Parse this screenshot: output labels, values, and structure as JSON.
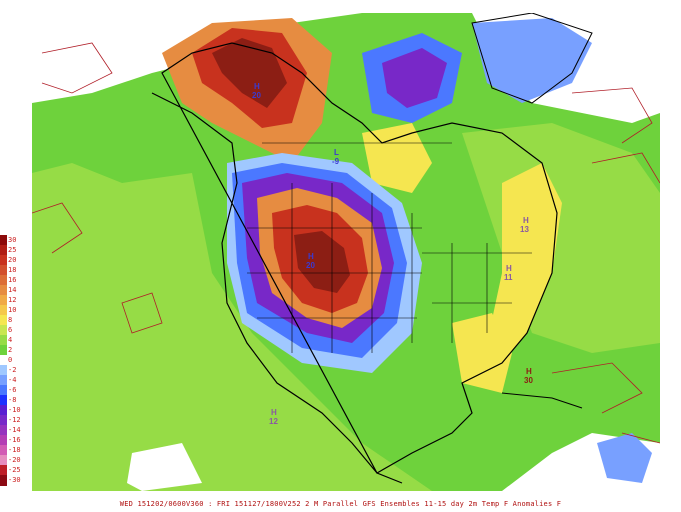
{
  "footer": {
    "text": "WED 151202/0600V360 : FRI 151127/1800V252  2 M Parallel GFS Ensembles 11-15 day 2m Temp F Anomalies F"
  },
  "legend": {
    "entries": [
      {
        "label": "30",
        "color": "#8c0a0a"
      },
      {
        "label": "25",
        "color": "#b01e14"
      },
      {
        "label": "20",
        "color": "#c8321e"
      },
      {
        "label": "18",
        "color": "#d2502d"
      },
      {
        "label": "16",
        "color": "#dc6e37"
      },
      {
        "label": "14",
        "color": "#e68c41"
      },
      {
        "label": "12",
        "color": "#f0aa46"
      },
      {
        "label": "10",
        "color": "#f5c84b"
      },
      {
        "label": "8",
        "color": "#f5e650"
      },
      {
        "label": "6",
        "color": "#c8e650"
      },
      {
        "label": "4",
        "color": "#96dc46"
      },
      {
        "label": "2",
        "color": "#6ed23c"
      },
      {
        "label": "0",
        "color": "#ffffff"
      },
      {
        "label": "-2",
        "color": "#a0c8ff"
      },
      {
        "label": "-4",
        "color": "#78a0ff"
      },
      {
        "label": "-6",
        "color": "#4b78ff"
      },
      {
        "label": "-8",
        "color": "#1e32ff"
      },
      {
        "label": "-10",
        "color": "#5a1ed2"
      },
      {
        "label": "-12",
        "color": "#7828c8"
      },
      {
        "label": "-14",
        "color": "#9632be"
      },
      {
        "label": "-16",
        "color": "#b43cb4"
      },
      {
        "label": "-18",
        "color": "#d25ab4"
      },
      {
        "label": "-20",
        "color": "#e68cbe"
      },
      {
        "label": "-25",
        "color": "#be1e28"
      },
      {
        "label": "-30",
        "color": "#8c0a14"
      }
    ]
  },
  "map": {
    "colors": {
      "ocean": "#ffffff",
      "green_light": "#96dc46",
      "green": "#6ed23c",
      "yellow": "#f5e650",
      "warm_orange": "#e68c41",
      "warm_red": "#c8321e",
      "warm_dark": "#8c1e14",
      "cool_light": "#a0c8ff",
      "cool_blue": "#4b78ff",
      "cool_purple": "#7828c8",
      "coast": "#000000",
      "contour": "#b01e28"
    },
    "markers": [
      {
        "text": "-9",
        "kind": "L"
      },
      {
        "text": "13",
        "kind": "H"
      },
      {
        "text": "11",
        "kind": "H"
      },
      {
        "text": "12",
        "kind": "H"
      },
      {
        "text": "30",
        "kind": "H"
      },
      {
        "text": "20",
        "kind": "H"
      },
      {
        "text": "20",
        "kind": "H"
      }
    ]
  }
}
